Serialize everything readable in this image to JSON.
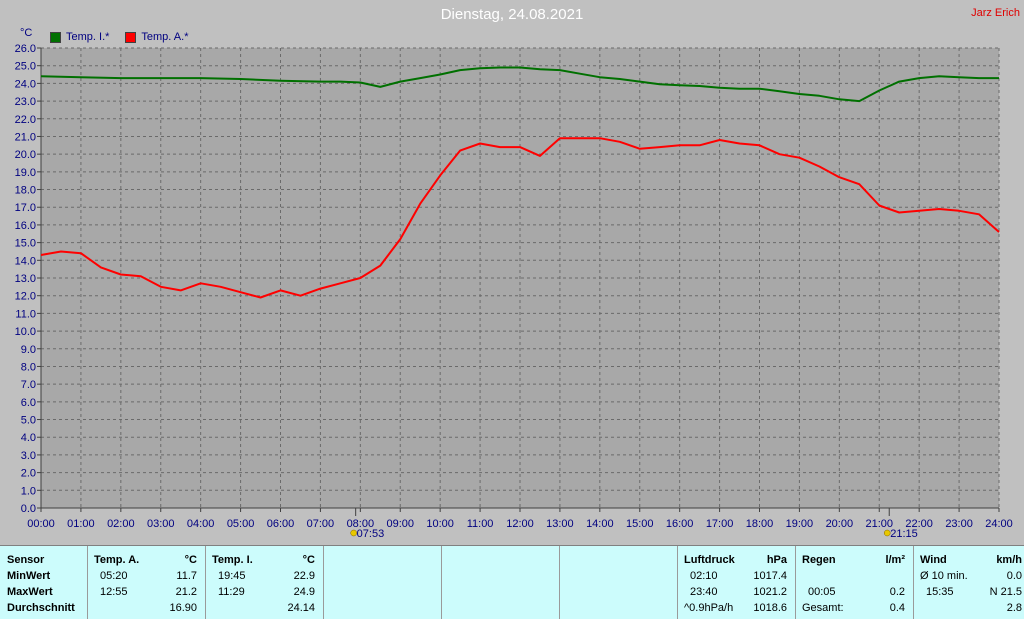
{
  "header": {
    "title": "Dienstag, 24.08.2021",
    "author": "Jarz Erich",
    "y_unit": "°C"
  },
  "legend": [
    {
      "label": "Temp. I.*",
      "color": "#007000"
    },
    {
      "label": "Temp. A.*",
      "color": "#ff0000"
    }
  ],
  "markers": {
    "sunrise": "07:53",
    "sunset": "21:15"
  },
  "chart_data": {
    "type": "line",
    "xlabel": "",
    "ylabel": "°C",
    "xlim": [
      0,
      24
    ],
    "ylim": [
      0,
      26
    ],
    "x_ticks": [
      "00:00",
      "01:00",
      "02:00",
      "03:00",
      "04:00",
      "05:00",
      "06:00",
      "07:00",
      "08:00",
      "09:00",
      "10:00",
      "11:00",
      "12:00",
      "13:00",
      "14:00",
      "15:00",
      "16:00",
      "17:00",
      "18:00",
      "19:00",
      "20:00",
      "21:00",
      "22:00",
      "23:00",
      "24:00"
    ],
    "y_ticks": [
      "0.0",
      "1.0",
      "2.0",
      "3.0",
      "4.0",
      "5.0",
      "6.0",
      "7.0",
      "8.0",
      "9.0",
      "10.0",
      "11.0",
      "12.0",
      "13.0",
      "14.0",
      "15.0",
      "16.0",
      "17.0",
      "18.0",
      "19.0",
      "20.0",
      "21.0",
      "22.0",
      "23.0",
      "24.0",
      "25.0",
      "26.0"
    ],
    "grid": true,
    "legend_position": "top-left",
    "series": [
      {
        "name": "Temp. I.*",
        "color": "#007000",
        "x": [
          0,
          1,
          2,
          3,
          4,
          5,
          6,
          7,
          7.5,
          8,
          8.5,
          9,
          9.5,
          10,
          10.5,
          11,
          11.5,
          12,
          12.5,
          13,
          13.5,
          14,
          14.5,
          15,
          15.5,
          16,
          16.5,
          17,
          17.5,
          18,
          18.5,
          19,
          19.5,
          20,
          20.5,
          21,
          21.5,
          22,
          22.5,
          23,
          23.5,
          24
        ],
        "y": [
          24.4,
          24.35,
          24.3,
          24.3,
          24.3,
          24.25,
          24.15,
          24.1,
          24.1,
          24.05,
          23.8,
          24.1,
          24.3,
          24.5,
          24.75,
          24.85,
          24.9,
          24.9,
          24.8,
          24.75,
          24.55,
          24.35,
          24.25,
          24.1,
          23.95,
          23.9,
          23.85,
          23.75,
          23.7,
          23.7,
          23.55,
          23.4,
          23.3,
          23.1,
          23.0,
          23.6,
          24.1,
          24.3,
          24.4,
          24.35,
          24.3,
          24.3
        ]
      },
      {
        "name": "Temp. A.*",
        "color": "#ff0000",
        "x": [
          0,
          0.5,
          1,
          1.5,
          2,
          2.5,
          3,
          3.5,
          4,
          4.5,
          5,
          5.5,
          6,
          6.5,
          7,
          7.5,
          8,
          8.5,
          9,
          9.5,
          10,
          10.5,
          11,
          11.5,
          12,
          12.5,
          13,
          13.5,
          14,
          14.5,
          15,
          15.5,
          16,
          16.5,
          17,
          17.5,
          18,
          18.5,
          19,
          19.5,
          20,
          20.5,
          21,
          21.5,
          22,
          22.5,
          23,
          23.5,
          24
        ],
        "y": [
          14.3,
          14.5,
          14.4,
          13.6,
          13.2,
          13.1,
          12.5,
          12.3,
          12.7,
          12.5,
          12.2,
          11.9,
          12.3,
          12.0,
          12.4,
          12.7,
          13.0,
          13.7,
          15.2,
          17.2,
          18.8,
          20.2,
          20.6,
          20.4,
          20.4,
          19.9,
          20.9,
          20.9,
          20.9,
          20.7,
          20.3,
          20.4,
          20.5,
          20.5,
          20.8,
          20.6,
          20.5,
          20.0,
          19.8,
          19.3,
          18.7,
          18.3,
          17.1,
          16.7,
          16.8,
          16.9,
          16.8,
          16.6,
          15.6
        ]
      }
    ]
  },
  "stats": {
    "sensor_label": "Sensor",
    "min_label": "MinWert",
    "max_label": "MaxWert",
    "avg_label": "Durchschnitt",
    "temp_a": {
      "header": "Temp. A.",
      "unit": "°C",
      "min_time": "05:20",
      "min_val": "11.7",
      "max_time": "12:55",
      "max_val": "21.2",
      "avg": "16.90"
    },
    "temp_i": {
      "header": "Temp. I.",
      "unit": "°C",
      "min_time": "19:45",
      "min_val": "22.9",
      "max_time": "11:29",
      "max_val": "24.9",
      "avg": "24.14"
    },
    "pressure": {
      "header": "Luftdruck",
      "unit": "hPa",
      "min_time": "02:10",
      "min_val": "1017.4",
      "max_time": "23:40",
      "max_val": "1021.2",
      "trend": "^0.9hPa/h",
      "current": "1018.6"
    },
    "rain": {
      "header": "Regen",
      "unit": "l/m²",
      "time": "00:05",
      "val": "0.2",
      "total_label": "Gesamt:",
      "total": "0.4"
    },
    "wind": {
      "header": "Wind",
      "unit": "km/h",
      "avg_label": "Ø 10 min.",
      "avg_val": "0.0",
      "gust_time": "15:35",
      "gust_val": "N 21.5",
      "mean": "2.8"
    }
  }
}
